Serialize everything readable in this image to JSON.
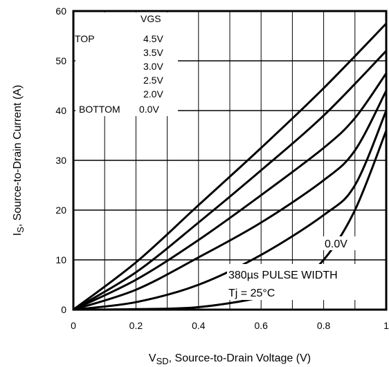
{
  "chart_data": {
    "type": "line",
    "title": "",
    "xlabel": {
      "symbol": "V",
      "sub": "SD",
      "rest": ", Source-to-Drain Voltage (V)"
    },
    "ylabel": {
      "symbol": "I",
      "sub": "S",
      "rest": ", Source-to-Drain Current (A)"
    },
    "xlim": [
      0,
      1
    ],
    "ylim": [
      0,
      60
    ],
    "xticks": [
      "0",
      "0.2",
      "0.4",
      "0.6",
      "0.8",
      "1"
    ],
    "yticks": [
      "0",
      "10",
      "20",
      "30",
      "40",
      "50",
      "60"
    ],
    "grid": true,
    "legend": {
      "header": "VGS",
      "top_label": "TOP",
      "bottom_label": "BOTTOM",
      "entries": [
        "4.5V",
        "3.5V",
        "3.0V",
        "2.5V",
        "2.0V",
        "0.0V"
      ],
      "placement": "top-left"
    },
    "annotations": {
      "curve_label": "0.0V",
      "pulse": "380µs PULSE WIDTH",
      "temp": "Tj = 25°C"
    },
    "series": [
      {
        "name": "4.5V",
        "x": [
          0,
          0.2,
          0.4,
          0.6,
          0.8,
          1.0
        ],
        "y": [
          0,
          9.5,
          21,
          32.5,
          44.5,
          57.5
        ]
      },
      {
        "name": "3.5V",
        "x": [
          0,
          0.2,
          0.4,
          0.6,
          0.8,
          1.0
        ],
        "y": [
          0,
          7.5,
          17.5,
          28,
          39,
          52
        ]
      },
      {
        "name": "3.0V",
        "x": [
          0,
          0.2,
          0.4,
          0.6,
          0.8,
          0.9,
          1.0
        ],
        "y": [
          0,
          6,
          14,
          23,
          32.5,
          38.5,
          47.5
        ]
      },
      {
        "name": "2.5V",
        "x": [
          0,
          0.2,
          0.4,
          0.6,
          0.8,
          0.9,
          1.0
        ],
        "y": [
          0,
          4,
          10.5,
          17.5,
          26,
          32,
          44
        ]
      },
      {
        "name": "2.0V",
        "x": [
          0,
          0.2,
          0.4,
          0.6,
          0.8,
          0.9,
          1.0
        ],
        "y": [
          0,
          1.5,
          5,
          11,
          19,
          25,
          40
        ]
      },
      {
        "name": "0.0V",
        "x": [
          0,
          0.2,
          0.4,
          0.6,
          0.7,
          0.8,
          0.9,
          1.0
        ],
        "y": [
          0,
          0.1,
          0.5,
          2.5,
          5,
          10,
          20,
          36
        ]
      }
    ]
  }
}
